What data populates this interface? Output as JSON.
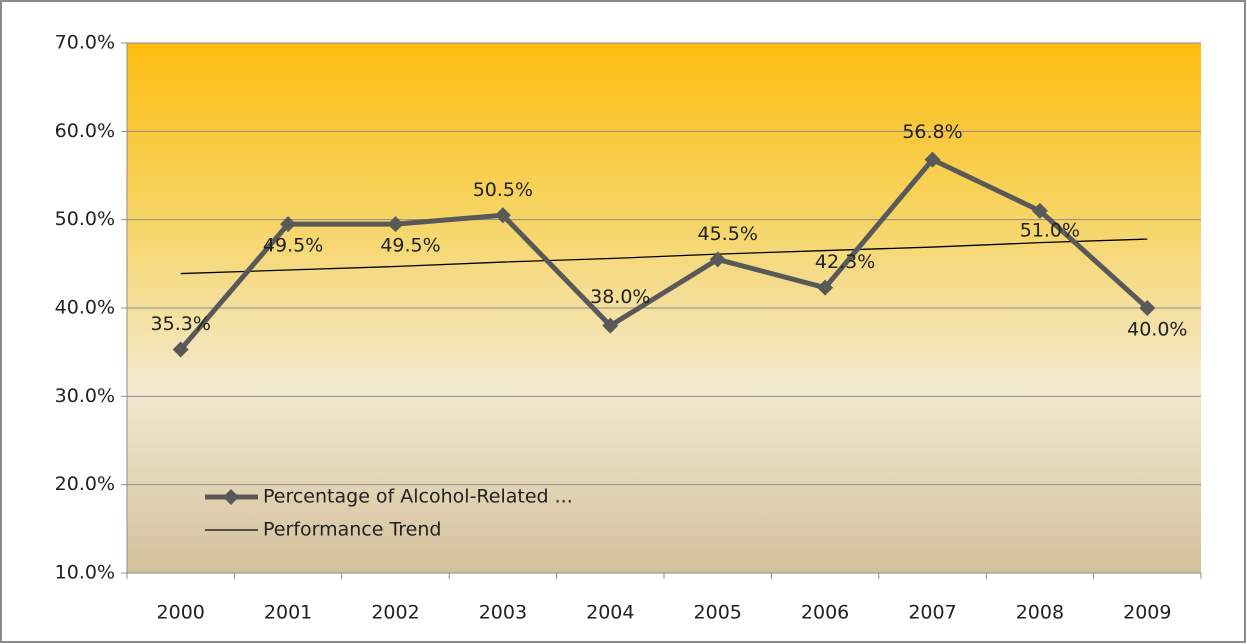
{
  "chart_data": {
    "type": "line",
    "categories": [
      "2000",
      "2001",
      "2002",
      "2003",
      "2004",
      "2005",
      "2006",
      "2007",
      "2008",
      "2009"
    ],
    "series": [
      {
        "name": "Percentage of Alcohol-Related ...",
        "color": "#595959",
        "values": [
          35.3,
          49.5,
          49.5,
          50.5,
          38.0,
          45.5,
          42.3,
          56.8,
          51.0,
          40.0
        ],
        "value_labels": [
          "35.3%",
          "49.5%",
          "49.5%",
          "50.5%",
          "38.0%",
          "45.5%",
          "42.3%",
          "56.8%",
          "51.0%",
          "40.0%"
        ]
      },
      {
        "name": "Performance Trend",
        "color": "#000000",
        "values": [
          43.9,
          44.3,
          44.7,
          45.2,
          45.6,
          46.1,
          46.5,
          46.9,
          47.4,
          47.8
        ]
      }
    ],
    "ylim": [
      10,
      70
    ],
    "yticks": [
      {
        "value": 10,
        "label": "10.0%"
      },
      {
        "value": 20,
        "label": "20.0%"
      },
      {
        "value": 30,
        "label": "30.0%"
      },
      {
        "value": 40,
        "label": "40.0%"
      },
      {
        "value": 50,
        "label": "50.0%"
      },
      {
        "value": 60,
        "label": "60.0%"
      },
      {
        "value": 70,
        "label": "70.0%"
      }
    ],
    "grid": true,
    "legend": "lower left"
  }
}
